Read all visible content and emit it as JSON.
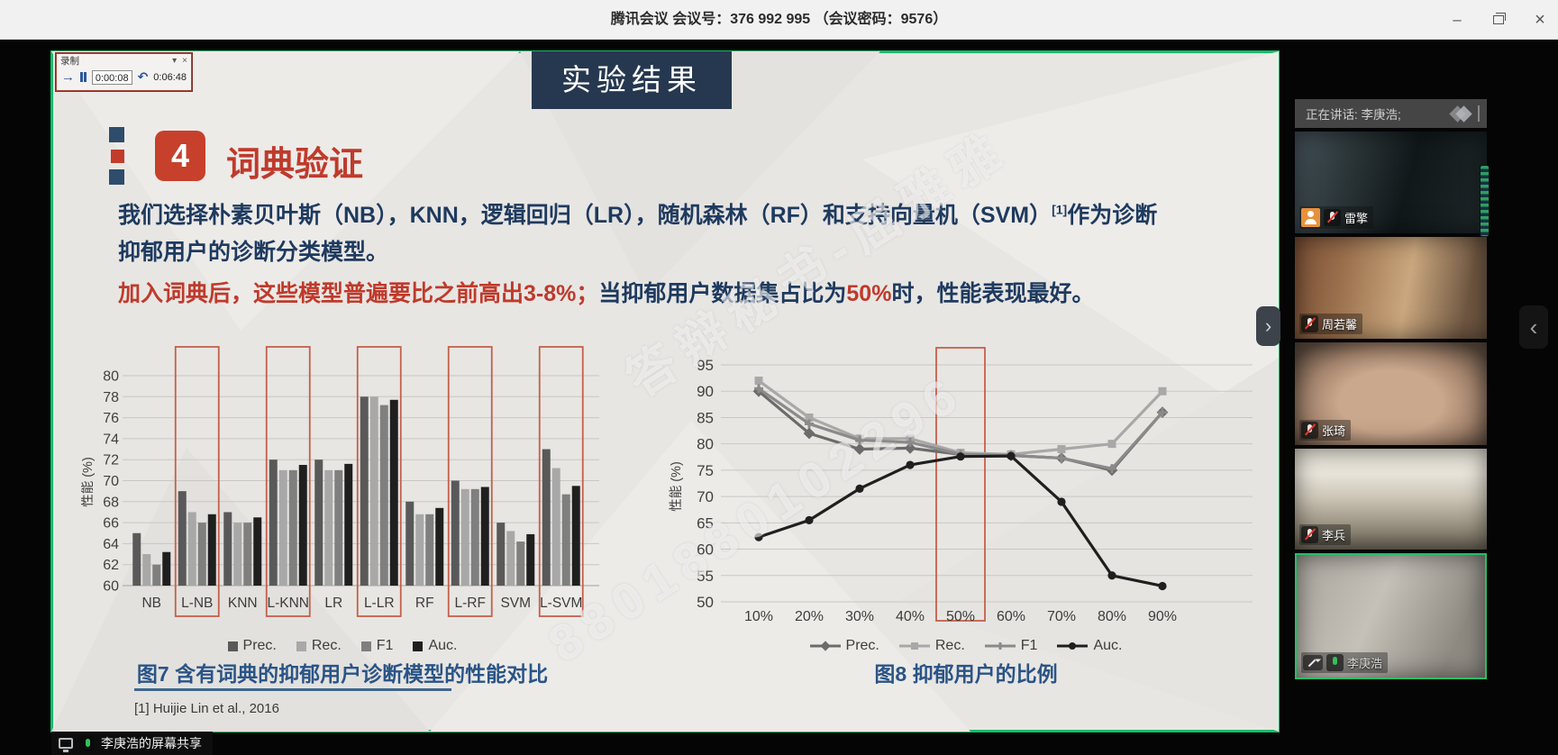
{
  "window": {
    "title": "腾讯会议 会议号：376 992 995 （会议密码：9576）",
    "minimize_label": "–",
    "close_label": "×"
  },
  "recorder": {
    "title": "录制",
    "dropdown_glyph": "▾",
    "close_glyph": "×",
    "next_glyph": "→",
    "replay_glyph": "↶",
    "elapsed": "0:00:08",
    "total": "0:06:48"
  },
  "nav": {
    "slide_tab": "›",
    "right_panel": "‹"
  },
  "slide": {
    "banner": "实验结果",
    "section_no": "4",
    "section_title": "词典验证",
    "para1_main": "我们选择朴素贝叶斯（NB），KNN，逻辑回归（LR），随机森林（RF）和支持向量机（SVM）",
    "para1_sup": "[1]",
    "para1_tail": "作为诊断",
    "para1_line2": "抑郁用户的诊断分类模型。",
    "hl_red1": "加入词典后，这些模型普遍要比之前高出3-8%；",
    "hl_navy1": "当抑郁用户数据集占比为",
    "hl_red2": "50%",
    "hl_navy2": "时，性能表现最好。",
    "footnote": "[1] Huijie Lin et al., 2016",
    "watermark_number": "8801880102296",
    "watermark_text": "答辩秘书-屈雅雅",
    "accent_red": "#c23c2b",
    "accent_navy": "#2e4d6b",
    "highlight_box_color": "#c4604b"
  },
  "chart_data": [
    {
      "type": "bar",
      "title": "图7 含有词典的抑郁用户诊断模型的性能对比",
      "ylabel": "性能 (%)",
      "ylim": [
        60,
        80.5
      ],
      "yticks": [
        60,
        62,
        64,
        66,
        68,
        70,
        72,
        74,
        76,
        78,
        80
      ],
      "grid": true,
      "legend_position": "bottom",
      "categories": [
        "NB",
        "L-NB",
        "KNN",
        "L-KNN",
        "LR",
        "L-LR",
        "RF",
        "L-RF",
        "SVM",
        "L-SVM"
      ],
      "highlighted": [
        "L-NB",
        "L-KNN",
        "L-LR",
        "L-RF",
        "L-SVM"
      ],
      "series": [
        {
          "name": "Prec.",
          "color": "#595959",
          "values": [
            65,
            69,
            67,
            72,
            72,
            78,
            68,
            70,
            66,
            73
          ]
        },
        {
          "name": "Rec.",
          "color": "#a8a8a8",
          "values": [
            63,
            67,
            66,
            71,
            71,
            78,
            66.8,
            69.2,
            65.2,
            71.2
          ]
        },
        {
          "name": "F1",
          "color": "#7f7f7f",
          "values": [
            62,
            66,
            66,
            71,
            71,
            77.2,
            66.8,
            69.2,
            64.2,
            68.7
          ]
        },
        {
          "name": "Auc.",
          "color": "#1f1f1f",
          "values": [
            63.2,
            66.8,
            66.5,
            71.5,
            71.6,
            77.7,
            67.4,
            69.4,
            64.9,
            69.5
          ]
        }
      ]
    },
    {
      "type": "line",
      "title": "图8 抑郁用户的比例",
      "ylabel": "性能 (%)",
      "ylim": [
        50,
        96
      ],
      "yticks": [
        50,
        55,
        60,
        65,
        70,
        75,
        80,
        85,
        90,
        95
      ],
      "grid": true,
      "legend_position": "bottom",
      "x": [
        "10%",
        "20%",
        "30%",
        "40%",
        "50%",
        "60%",
        "70%",
        "80%",
        "90%"
      ],
      "highlight_x": "50%",
      "series": [
        {
          "name": "Prec.",
          "marker": "diamond",
          "color": "#6b6b6b",
          "values": [
            90,
            82,
            79,
            79.2,
            78,
            77.8,
            77.3,
            75,
            86
          ]
        },
        {
          "name": "Rec.",
          "marker": "square",
          "color": "#a8a8a8",
          "values": [
            92,
            85,
            81,
            81,
            78.3,
            78,
            79,
            80,
            90
          ]
        },
        {
          "name": "F1",
          "marker": "plus",
          "color": "#8a8a8a",
          "values": [
            90.5,
            83.8,
            80.7,
            80.3,
            78,
            77.8,
            77.3,
            75.3,
            86
          ]
        },
        {
          "name": "Auc.",
          "marker": "circle",
          "color": "#1f1f1f",
          "values": [
            62.3,
            65.5,
            71.5,
            76,
            77.6,
            77.7,
            69,
            55,
            53
          ]
        }
      ]
    }
  ],
  "sidebar": {
    "speaking": "正在讲话: 李庚浩;",
    "participants": [
      {
        "name": "雷擎",
        "muted": true,
        "pinned": true
      },
      {
        "name": "周若馨",
        "muted": true
      },
      {
        "name": "张琦",
        "muted": true
      },
      {
        "name": "李兵",
        "muted": true
      },
      {
        "name": "李庚浩",
        "muted": false,
        "active_speaker": true,
        "sharing": true
      }
    ]
  },
  "share_banner": {
    "text": "李庚浩的屏幕共享"
  }
}
